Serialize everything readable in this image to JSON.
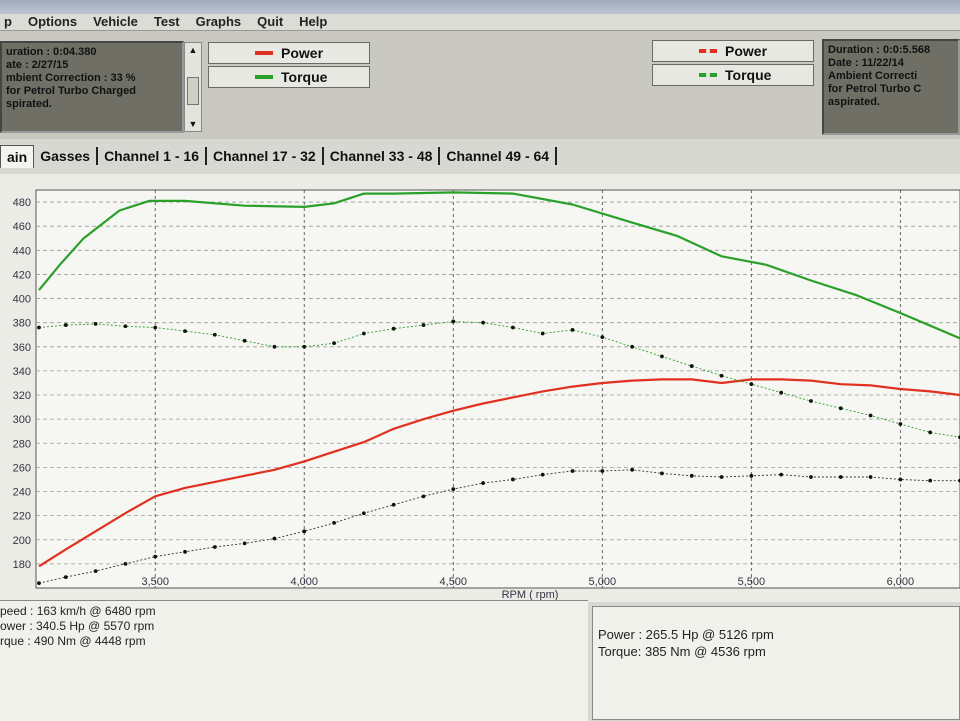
{
  "menu": {
    "items": [
      "p",
      "Options",
      "Vehicle",
      "Test",
      "Graphs",
      "Quit",
      "Help"
    ]
  },
  "left_info": {
    "lines": [
      "uration : 0:04.380",
      "ate : 2/27/15",
      "mbient Correction : 33 %",
      "for Petrol Turbo Charged",
      "spirated."
    ]
  },
  "right_info": {
    "lines": [
      "Duration : 0:0:5.568",
      "Date : 11/22/14",
      "Ambient Correcti",
      " for Petrol Turbo C",
      "aspirated."
    ]
  },
  "legend_left": [
    {
      "label": "Power",
      "color": "#e03020"
    },
    {
      "label": "Torque",
      "color": "#2aa02a"
    }
  ],
  "legend_right": [
    {
      "label": "Power",
      "color": "#e03020"
    },
    {
      "label": "Torque",
      "color": "#2aa02a"
    }
  ],
  "tabs": [
    "ain",
    "Gasses",
    "Channel 1 - 16",
    "Channel 17 - 32",
    "Channel 33 - 48",
    "Channel 49 - 64"
  ],
  "stats_left": [
    "peed : 163 km/h @ 6480 rpm",
    "ower : 340.5 Hp @ 5570 rpm",
    "rque : 490 Nm @ 4448 rpm"
  ],
  "stats_right": [
    "Power : 265.5 Hp @ 5126 rpm",
    "Torque: 385 Nm @ 4536 rpm"
  ],
  "chart_data": {
    "type": "line",
    "xlabel": "RPM ( rpm)",
    "ylabel": "",
    "xlim": [
      3100,
      6200
    ],
    "ylim": [
      160,
      490
    ],
    "x_ticks": [
      3500,
      4000,
      4500,
      5000,
      5500,
      6000
    ],
    "x_tick_labels": [
      "3,500",
      "4,000",
      "4,500",
      "5,000",
      "5,500",
      "6,000"
    ],
    "y_ticks": [
      180,
      200,
      220,
      240,
      260,
      280,
      300,
      320,
      340,
      360,
      380,
      400,
      420,
      440,
      460,
      480
    ],
    "grid": true,
    "series": [
      {
        "name": "Torque",
        "color": "#2aa02a",
        "style": "solid",
        "x": [
          3110,
          3180,
          3260,
          3380,
          3480,
          3600,
          3800,
          4000,
          4100,
          4200,
          4300,
          4500,
          4700,
          4900,
          5100,
          5250,
          5400,
          5550,
          5700,
          5850,
          6000,
          6200
        ],
        "y": [
          407,
          428,
          450,
          473,
          481,
          481,
          477,
          476,
          479,
          487,
          487,
          488,
          487,
          478,
          463,
          452,
          435,
          428,
          415,
          403,
          388,
          367
        ]
      },
      {
        "name": "Power",
        "color": "#e03020",
        "style": "solid",
        "x": [
          3110,
          3200,
          3300,
          3400,
          3500,
          3600,
          3700,
          3800,
          3900,
          4000,
          4100,
          4200,
          4300,
          4400,
          4500,
          4600,
          4700,
          4800,
          4900,
          5000,
          5100,
          5200,
          5300,
          5400,
          5500,
          5600,
          5700,
          5800,
          5900,
          6000,
          6100,
          6200
        ],
        "y": [
          178,
          192,
          207,
          222,
          236,
          243,
          248,
          253,
          258,
          265,
          273,
          281,
          292,
          300,
          307,
          313,
          318,
          323,
          327,
          330,
          332,
          333,
          333,
          330,
          333,
          333,
          332,
          329,
          328,
          325,
          323,
          320
        ]
      },
      {
        "name": "Torque",
        "color": "#2aa02a",
        "style": "dotted",
        "x": [
          3110,
          3200,
          3300,
          3400,
          3500,
          3600,
          3700,
          3800,
          3900,
          4000,
          4100,
          4200,
          4300,
          4400,
          4500,
          4600,
          4700,
          4800,
          4900,
          5000,
          5100,
          5200,
          5300,
          5400,
          5500,
          5600,
          5700,
          5800,
          5900,
          6000,
          6100,
          6200
        ],
        "y": [
          376,
          378,
          379,
          377,
          376,
          373,
          370,
          365,
          360,
          360,
          363,
          371,
          375,
          378,
          381,
          380,
          376,
          371,
          374,
          368,
          360,
          352,
          344,
          336,
          329,
          322,
          315,
          309,
          303,
          296,
          289,
          285
        ]
      },
      {
        "name": "Power",
        "color": "#333333",
        "style": "dotted",
        "x": [
          3110,
          3200,
          3300,
          3400,
          3500,
          3600,
          3700,
          3800,
          3900,
          4000,
          4100,
          4200,
          4300,
          4400,
          4500,
          4600,
          4700,
          4800,
          4900,
          5000,
          5100,
          5200,
          5300,
          5400,
          5500,
          5600,
          5700,
          5800,
          5900,
          6000,
          6100,
          6200
        ],
        "y": [
          164,
          169,
          174,
          180,
          186,
          190,
          194,
          197,
          201,
          207,
          214,
          222,
          229,
          236,
          242,
          247,
          250,
          254,
          257,
          257,
          258,
          255,
          253,
          252,
          253,
          254,
          252,
          252,
          252,
          250,
          249,
          249
        ]
      }
    ]
  }
}
